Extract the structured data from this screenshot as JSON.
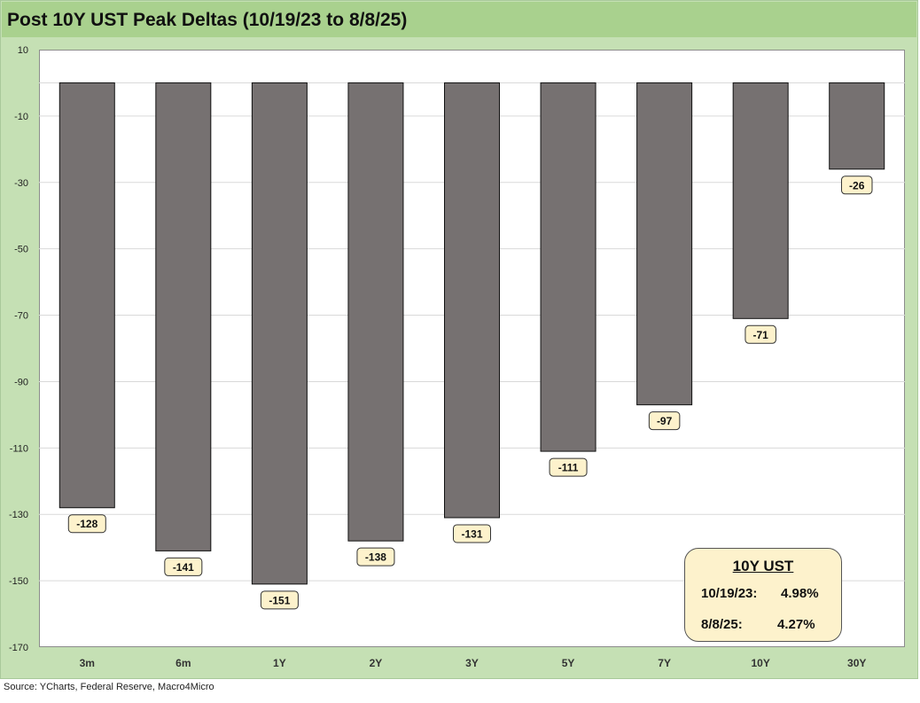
{
  "page": {
    "title": "Post 10Y UST Peak Deltas (10/19/23 to 8/8/25)",
    "source": "Source: YCharts, Federal Reserve, Macro4Micro"
  },
  "info_box": {
    "heading": "10Y UST",
    "rows": [
      {
        "date": "10/19/23:",
        "value": "4.98%"
      },
      {
        "date": "8/8/25:",
        "value": "4.27%"
      }
    ]
  },
  "colors": {
    "bar": "#767171",
    "label_fill": "#fdf2cc",
    "frame": "#c5e0b4",
    "title_bar": "#a9d18e"
  },
  "chart_data": {
    "type": "bar",
    "title": "Post 10Y UST Peak Deltas (10/19/23 to 8/8/25)",
    "categories": [
      "3m",
      "6m",
      "1Y",
      "2Y",
      "3Y",
      "5Y",
      "7Y",
      "10Y",
      "30Y"
    ],
    "values": [
      -128,
      -141,
      -151,
      -138,
      -131,
      -111,
      -97,
      -71,
      -26
    ],
    "ylim": [
      -170,
      10
    ],
    "yticks": [
      10,
      -10,
      -30,
      -50,
      -70,
      -90,
      -110,
      -130,
      -150,
      -170
    ],
    "xlabel": "",
    "ylabel": "",
    "grid": true,
    "data_labels": true
  }
}
